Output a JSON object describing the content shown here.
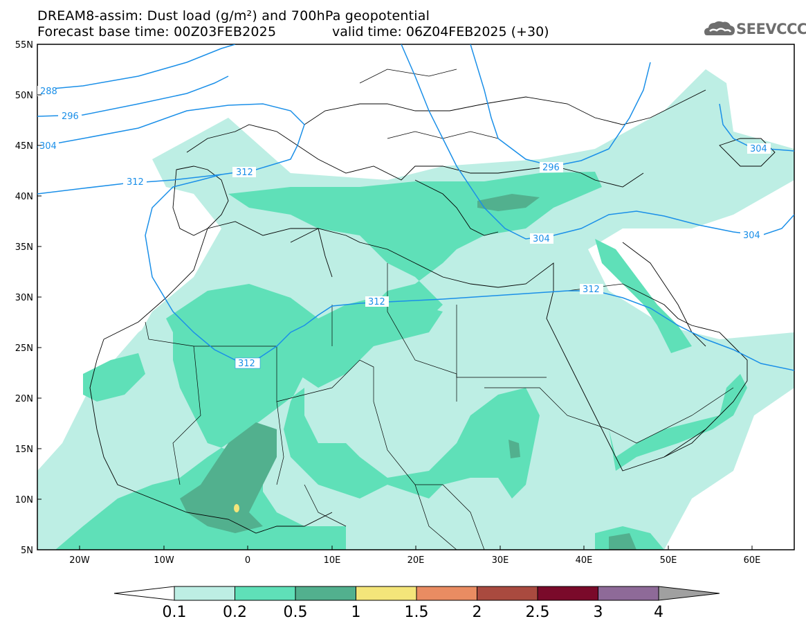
{
  "title": {
    "line1": "DREAM8-assim: Dust load (g/m²) and 700hPa geopotential",
    "line2": "Forecast base time: 00Z03FEB2025",
    "valid": "valid time: 06Z04FEB2025 (+30)"
  },
  "logo": {
    "text": "SEEVCCC",
    "icon": "cloud-logo-icon"
  },
  "map": {
    "lat_labels": [
      "55N",
      "50N",
      "45N",
      "40N",
      "35N",
      "30N",
      "25N",
      "20N",
      "15N",
      "10N",
      "5N"
    ],
    "lon_labels": [
      "20W",
      "10W",
      "0",
      "10E",
      "20E",
      "30E",
      "40E",
      "50E",
      "60E"
    ],
    "lat_range": [
      5,
      55
    ],
    "lon_range": [
      -25,
      65
    ],
    "contour_labels": [
      "288",
      "296",
      "304",
      "312",
      "312",
      "312",
      "312",
      "296",
      "304",
      "304",
      "304"
    ]
  },
  "colorbar": {
    "labels": [
      "0.1",
      "0.2",
      "0.5",
      "1",
      "1.5",
      "2",
      "2.5",
      "3",
      "4"
    ],
    "colors": [
      "#bdeee4",
      "#5fe0b8",
      "#52b08e",
      "#f4e57a",
      "#e98c62",
      "#a94a3f",
      "#7a0a2a",
      "#8e6a98",
      "#a0a0a0"
    ]
  }
}
